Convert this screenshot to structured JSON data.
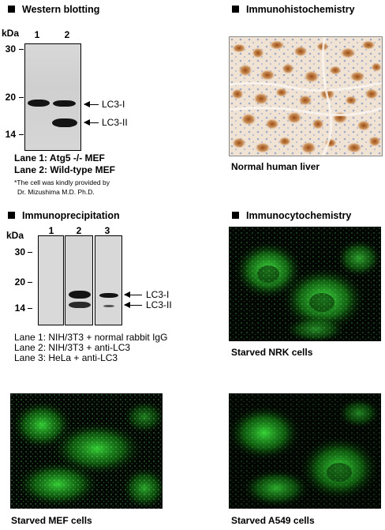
{
  "western": {
    "title": "Western blotting",
    "kda": "kDa",
    "markers": [
      "30",
      "20",
      "14"
    ],
    "lanes": [
      "1",
      "2"
    ],
    "band_labels": [
      "LC3-I",
      "LC3-II"
    ],
    "legend": [
      "Lane 1: Atg5 -/- MEF",
      "Lane 2: Wild-type MEF"
    ],
    "note_lines": [
      "*The cell was kindly provided by",
      "Dr. Mizushima M.D. Ph.D."
    ]
  },
  "ihc": {
    "title": "Immunohistochemistry",
    "caption": "Normal human liver"
  },
  "ip": {
    "title": "Immunoprecipitation",
    "kda": "kDa",
    "markers": [
      "30",
      "20",
      "14"
    ],
    "lanes": [
      "1",
      "2",
      "3"
    ],
    "band_labels": [
      "LC3-I",
      "LC3-II"
    ],
    "legend": [
      "Lane 1: NIH/3T3 + normal rabbit IgG",
      "Lane 2: NIH/3T3 + anti-LC3",
      "Lane 3: HeLa + anti-LC3"
    ]
  },
  "icc": {
    "title": "Immunocytochemistry",
    "captions": [
      "Starved NRK cells",
      "Starved MEF cells",
      "Starved A549 cells"
    ]
  }
}
